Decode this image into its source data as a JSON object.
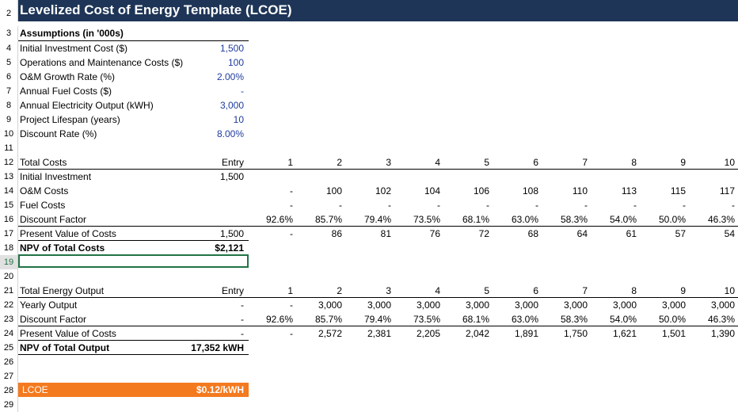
{
  "title": "Levelized Cost of Energy Template (LCOE)",
  "row_numbers": [
    "2",
    "3",
    "4",
    "5",
    "6",
    "7",
    "8",
    "9",
    "10",
    "11",
    "12",
    "13",
    "14",
    "15",
    "16",
    "17",
    "18",
    "19",
    "20",
    "21",
    "22",
    "23",
    "24",
    "25",
    "26",
    "27",
    "28",
    "29"
  ],
  "assumptions": {
    "header": "Assumptions (in '000s)",
    "items": [
      {
        "label": "Initial Investment Cost ($)",
        "value": "1,500"
      },
      {
        "label": "Operations and Maintenance Costs ($)",
        "value": "100"
      },
      {
        "label": "O&M Growth Rate (%)",
        "value": "2.00%"
      },
      {
        "label": "Annual Fuel Costs ($)",
        "value": "-"
      },
      {
        "label": "Annual Electricity Output (kWH)",
        "value": "3,000"
      },
      {
        "label": "Project Lifespan (years)",
        "value": "10"
      },
      {
        "label": "Discount Rate (%)",
        "value": "8.00%"
      }
    ]
  },
  "costs": {
    "header": {
      "label": "Total Costs",
      "entry": "Entry",
      "periods": [
        "1",
        "2",
        "3",
        "4",
        "5",
        "6",
        "7",
        "8",
        "9",
        "10"
      ]
    },
    "rows": [
      {
        "label": "Initial Investment",
        "entry": "1,500",
        "periods": [
          "",
          "",
          "",
          "",
          "",
          "",
          "",
          "",
          "",
          ""
        ]
      },
      {
        "label": "O&M Costs",
        "entry": "",
        "periods": [
          "-",
          "100",
          "102",
          "104",
          "106",
          "108",
          "110",
          "113",
          "115",
          "117"
        ]
      },
      {
        "label": "Fuel Costs",
        "entry": "",
        "periods": [
          "-",
          "-",
          "-",
          "-",
          "-",
          "-",
          "-",
          "-",
          "-",
          "-"
        ]
      },
      {
        "label": "Discount Factor",
        "entry": "",
        "periods": [
          "92.6%",
          "85.7%",
          "79.4%",
          "73.5%",
          "68.1%",
          "63.0%",
          "58.3%",
          "54.0%",
          "50.0%",
          "46.3%"
        ]
      },
      {
        "label": "Present Value of Costs",
        "entry": "1,500",
        "periods": [
          "-",
          "86",
          "81",
          "76",
          "72",
          "68",
          "64",
          "61",
          "57",
          "54"
        ]
      }
    ],
    "npv": {
      "label": "NPV of Total Costs",
      "value": "$2,121"
    }
  },
  "energy": {
    "header": {
      "label": "Total Energy Output",
      "entry": "Entry",
      "periods": [
        "1",
        "2",
        "3",
        "4",
        "5",
        "6",
        "7",
        "8",
        "9",
        "10"
      ]
    },
    "rows": [
      {
        "label": "Yearly Output",
        "entry": "-",
        "periods": [
          "-",
          "3,000",
          "3,000",
          "3,000",
          "3,000",
          "3,000",
          "3,000",
          "3,000",
          "3,000",
          "3,000"
        ]
      },
      {
        "label": "Discount Factor",
        "entry": "-",
        "periods": [
          "92.6%",
          "85.7%",
          "79.4%",
          "73.5%",
          "68.1%",
          "63.0%",
          "58.3%",
          "54.0%",
          "50.0%",
          "46.3%"
        ]
      },
      {
        "label": "Present Value of Costs",
        "entry": "-",
        "periods": [
          "-",
          "2,572",
          "2,381",
          "2,205",
          "2,042",
          "1,891",
          "1,750",
          "1,621",
          "1,501",
          "1,390"
        ]
      }
    ],
    "npv": {
      "label": "NPV of Total Output",
      "value": "17,352 kWH"
    }
  },
  "lcoe": {
    "label": "LCOE",
    "value": "$0.12/kWH"
  },
  "colors": {
    "title_bg": "#1e3557",
    "lcoe_bg": "#f47a20",
    "input_blue": "#1f3b9e"
  }
}
